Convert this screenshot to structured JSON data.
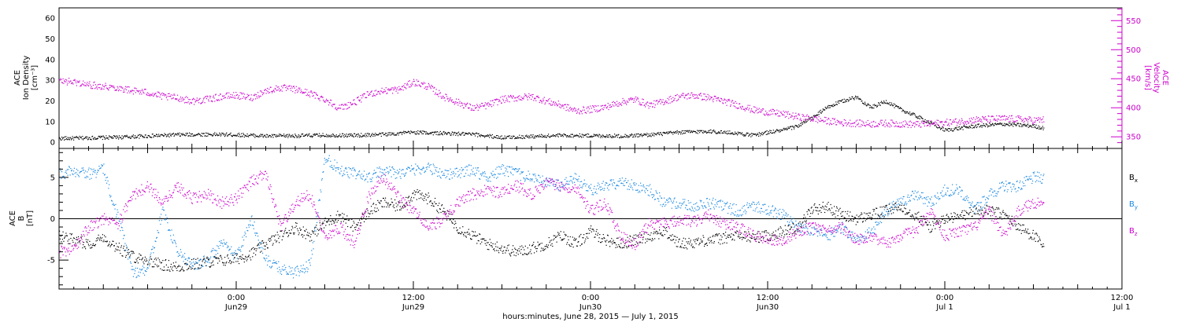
{
  "colors": {
    "black": "#000000",
    "magenta": "#cc00cc",
    "blue": "#1a88e0",
    "axis": "#000000"
  },
  "x_axis": {
    "label": "hours:minutes, June 28, 2015 — July  1, 2015",
    "range_hours": [
      0,
      72
    ],
    "major_ticks": [
      {
        "hour": 12,
        "time": "0:00",
        "date": "Jun29"
      },
      {
        "hour": 24,
        "time": "12:00",
        "date": "Jun29"
      },
      {
        "hour": 36,
        "time": "0:00",
        "date": "Jun30"
      },
      {
        "hour": 48,
        "time": "12:00",
        "date": "Jun30"
      },
      {
        "hour": 60,
        "time": "0:00",
        "date": "Jul 1"
      },
      {
        "hour": 72,
        "time": "12:00",
        "date": "Jul 1"
      }
    ]
  },
  "chart_data": [
    {
      "type": "scatter",
      "panel": "top",
      "ylabel": "ACE\nIon Density\n[cm⁻³]",
      "ylim": [
        -3,
        65
      ],
      "yticks": [
        0,
        10,
        20,
        30,
        40,
        50,
        60
      ],
      "y2label": "ACE\nVelocity\n[km/s]",
      "y2lim": [
        330,
        572
      ],
      "y2ticks": [
        350,
        400,
        450,
        500,
        550
      ],
      "series": [
        {
          "color_key": "black",
          "axis": "left",
          "x": [
            0,
            2,
            4,
            6,
            8,
            10,
            12,
            14,
            16,
            18,
            20,
            22,
            24,
            26,
            28,
            30,
            32,
            34,
            36,
            38,
            40,
            42,
            44,
            46,
            47,
            48,
            49,
            50,
            51,
            52,
            53,
            54,
            55,
            56,
            57,
            58,
            60,
            62,
            64,
            66,
            66.7
          ],
          "y": [
            2,
            2.3,
            2.6,
            3.2,
            3.8,
            4,
            3.8,
            3.2,
            3.3,
            3.6,
            3.5,
            4,
            5,
            4.5,
            4,
            2.5,
            3,
            3.5,
            3.4,
            3.2,
            3.8,
            5,
            5.5,
            4.5,
            3.5,
            5,
            6,
            8,
            12,
            17,
            20,
            22,
            17,
            20,
            16,
            13,
            6,
            8,
            9,
            8,
            7
          ]
        },
        {
          "color_key": "magenta",
          "axis": "right",
          "x": [
            0,
            1,
            2,
            3,
            4,
            5,
            6,
            7,
            8,
            9,
            10,
            11,
            12,
            13,
            14,
            15,
            16,
            17,
            18,
            19,
            20,
            21,
            22,
            23,
            24,
            25,
            26,
            27,
            28,
            29,
            30,
            31,
            32,
            33,
            34,
            35,
            36,
            37,
            38,
            39,
            40,
            41,
            42,
            43,
            44,
            45,
            46,
            47,
            48,
            49,
            50,
            51,
            52,
            53,
            54,
            55,
            56,
            57,
            58,
            59,
            60,
            61,
            62,
            63,
            64,
            65,
            66,
            66.7
          ],
          "y": [
            447,
            445,
            440,
            438,
            435,
            430,
            427,
            420,
            418,
            412,
            415,
            420,
            422,
            418,
            430,
            435,
            432,
            425,
            415,
            400,
            410,
            425,
            430,
            432,
            445,
            437,
            420,
            410,
            400,
            405,
            415,
            418,
            420,
            412,
            405,
            395,
            398,
            402,
            410,
            415,
            405,
            412,
            420,
            422,
            418,
            412,
            405,
            397,
            393,
            390,
            385,
            382,
            378,
            375,
            374,
            373,
            374,
            373,
            372,
            373,
            375,
            377,
            380,
            381,
            382,
            381,
            379,
            380
          ]
        }
      ]
    },
    {
      "type": "scatter",
      "panel": "bottom",
      "ylabel": "ACE\nB\n[nT]",
      "ylim": [
        -8.5,
        8.5
      ],
      "yticks": [
        -5,
        0,
        5
      ],
      "zero_line": true,
      "legend": [
        "Bx",
        "By",
        "Bz"
      ],
      "series": [
        {
          "name": "Bx",
          "color_key": "black",
          "x": [
            0,
            1,
            2,
            3,
            4,
            5,
            6,
            7,
            8,
            9,
            10,
            11,
            12,
            13,
            14,
            15,
            16,
            17,
            18,
            19,
            20,
            21,
            22,
            23,
            24,
            25,
            26,
            27,
            28,
            29,
            30,
            31,
            32,
            33,
            34,
            35,
            36,
            37,
            38,
            39,
            40,
            41,
            42,
            43,
            44,
            45,
            46,
            47,
            48,
            49,
            50,
            51,
            52,
            53,
            54,
            55,
            56,
            57,
            58,
            59,
            60,
            61,
            62,
            63,
            64,
            65,
            66,
            66.7
          ],
          "y": [
            -2,
            -2.5,
            -3,
            -2.2,
            -3.5,
            -4.5,
            -5,
            -5.5,
            -5.8,
            -5.5,
            -5.2,
            -5,
            -4.8,
            -4.2,
            -3,
            -2,
            -1,
            -2,
            -0.5,
            0.5,
            -1,
            1,
            2,
            1.5,
            3,
            2.5,
            1,
            -1,
            -2,
            -3,
            -3.5,
            -4,
            -3.5,
            -3,
            -2,
            -3,
            -1.5,
            -2.5,
            -3,
            -2.5,
            -2,
            -1.5,
            -3,
            -2.8,
            -2.5,
            -2.3,
            -2,
            -2.2,
            -2,
            -1.5,
            -1,
            1.2,
            1.5,
            0.5,
            0,
            0.5,
            1,
            1.5,
            0.5,
            -1,
            0,
            0.3,
            1,
            1,
            0.5,
            -1,
            -2,
            -3.5
          ]
        },
        {
          "name": "By",
          "color_key": "blue",
          "x": [
            0,
            1,
            2,
            3,
            4,
            5,
            6,
            7,
            8,
            9,
            10,
            11,
            12,
            13,
            14,
            15,
            16,
            17,
            18,
            19,
            20,
            21,
            22,
            23,
            24,
            25,
            26,
            27,
            28,
            29,
            30,
            31,
            32,
            33,
            34,
            35,
            36,
            37,
            38,
            39,
            40,
            41,
            42,
            43,
            44,
            45,
            46,
            47,
            48,
            49,
            50,
            51,
            52,
            53,
            54,
            55,
            56,
            57,
            58,
            59,
            60,
            61,
            62,
            63,
            64,
            65,
            66,
            66.7
          ],
          "y": [
            5.5,
            5.8,
            5.5,
            6,
            0,
            -6.5,
            -6,
            1,
            -4,
            -5.5,
            -5,
            -3,
            -4.5,
            0,
            -5,
            -6,
            -6.5,
            -5.5,
            7.5,
            6,
            5.5,
            5,
            6,
            5.5,
            6,
            6.2,
            5.5,
            5.5,
            6,
            5,
            6,
            5.5,
            5,
            4.5,
            4,
            5,
            3.5,
            4,
            4.5,
            4,
            3.5,
            2,
            1.8,
            1.5,
            2,
            1.5,
            1,
            1.5,
            1.2,
            0.5,
            -1,
            -1.5,
            -2,
            -1,
            -2.5,
            -1.5,
            1,
            2,
            3,
            2,
            3.5,
            3.5,
            1,
            3,
            4,
            4,
            5,
            5
          ]
        },
        {
          "name": "Bz",
          "color_key": "magenta",
          "x": [
            0,
            1,
            2,
            3,
            4,
            5,
            6,
            7,
            8,
            9,
            10,
            11,
            12,
            13,
            14,
            15,
            16,
            17,
            18,
            19,
            20,
            21,
            22,
            23,
            24,
            25,
            26,
            27,
            28,
            29,
            30,
            31,
            32,
            33,
            34,
            35,
            36,
            37,
            38,
            39,
            40,
            41,
            42,
            43,
            44,
            45,
            46,
            47,
            48,
            49,
            50,
            51,
            52,
            53,
            54,
            55,
            56,
            57,
            58,
            59,
            60,
            61,
            62,
            63,
            64,
            65,
            66,
            66.7
          ],
          "y": [
            -4,
            -3.5,
            -1,
            0,
            -0.5,
            3,
            4,
            2,
            4,
            2.5,
            3,
            2,
            2.5,
            4.5,
            5.5,
            -1,
            2,
            3,
            -2,
            -1,
            -3,
            3,
            5,
            2.5,
            1,
            -1,
            0,
            2,
            3,
            3.5,
            3.2,
            4,
            3,
            4.5,
            4,
            3.8,
            1,
            2,
            -2,
            -3,
            -0.5,
            -0.5,
            -0.2,
            -0.3,
            0.5,
            -0.5,
            -1,
            -2,
            -2.5,
            -2.5,
            -1.5,
            -1,
            -1.5,
            -1,
            -2.5,
            -2,
            -3,
            -2,
            -1.5,
            1,
            -2,
            -1.5,
            -1,
            1,
            -2,
            1,
            2,
            2
          ]
        }
      ]
    }
  ]
}
